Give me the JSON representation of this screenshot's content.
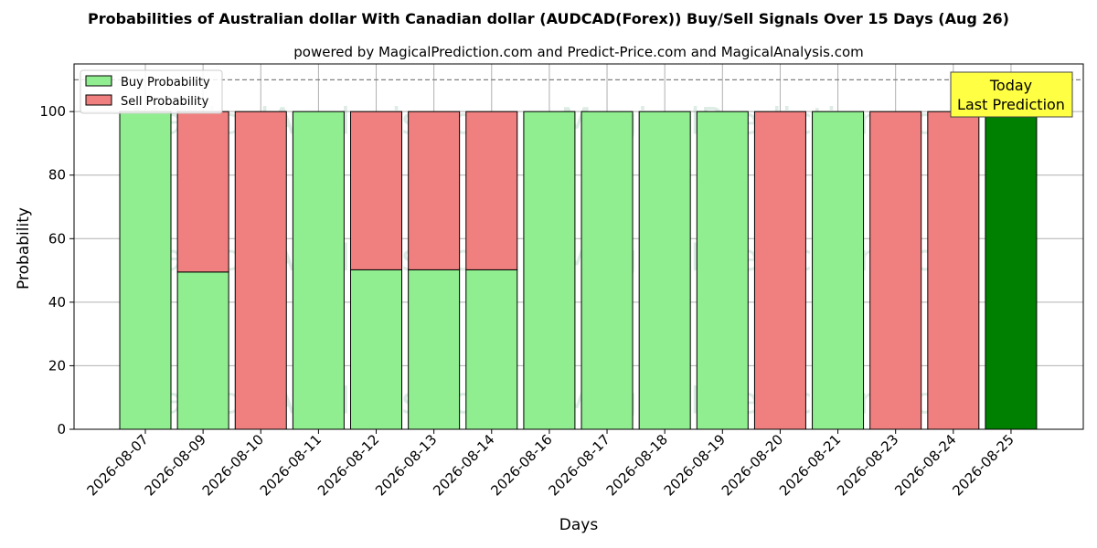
{
  "chart_data": {
    "type": "bar",
    "stacked": true,
    "title": "Probabilities of Australian dollar With Canadian dollar (AUDCAD(Forex)) Buy/Sell Signals Over 15 Days (Aug 26)",
    "subtitle": "powered by MagicalPrediction.com and Predict-Price.com and MagicalAnalysis.com",
    "xlabel": "Days",
    "ylabel": "Probability",
    "ylim": [
      0,
      115
    ],
    "yticks": [
      0,
      20,
      40,
      60,
      80,
      100
    ],
    "reference_line": 110,
    "grid": true,
    "legend_position": "top-left",
    "categories": [
      "2026-08-07",
      "2026-08-09",
      "2026-08-10",
      "2026-08-11",
      "2026-08-12",
      "2026-08-13",
      "2026-08-14",
      "2026-08-16",
      "2026-08-17",
      "2026-08-18",
      "2026-08-19",
      "2026-08-20",
      "2026-08-21",
      "2026-08-23",
      "2026-08-24",
      "2026-08-25"
    ],
    "series": [
      {
        "name": "Buy Probability",
        "color": "#90ee90",
        "values": [
          100,
          49.5,
          0,
          100,
          50.2,
          50.2,
          50.2,
          100,
          100,
          100,
          100,
          0,
          100,
          0,
          0,
          100
        ]
      },
      {
        "name": "Sell Probability",
        "color": "#f08080",
        "values": [
          0,
          50.5,
          100,
          0,
          49.8,
          49.8,
          49.8,
          0,
          0,
          0,
          0,
          100,
          0,
          100,
          100,
          0
        ]
      }
    ],
    "highlight": {
      "index": 15,
      "color": "#008000"
    },
    "annotation": {
      "lines": [
        "Today",
        "Last Prediction"
      ],
      "background": "#ffff44"
    },
    "watermarks": [
      "MagicalAnalysis.com",
      "MagicalPrediction.com"
    ]
  }
}
